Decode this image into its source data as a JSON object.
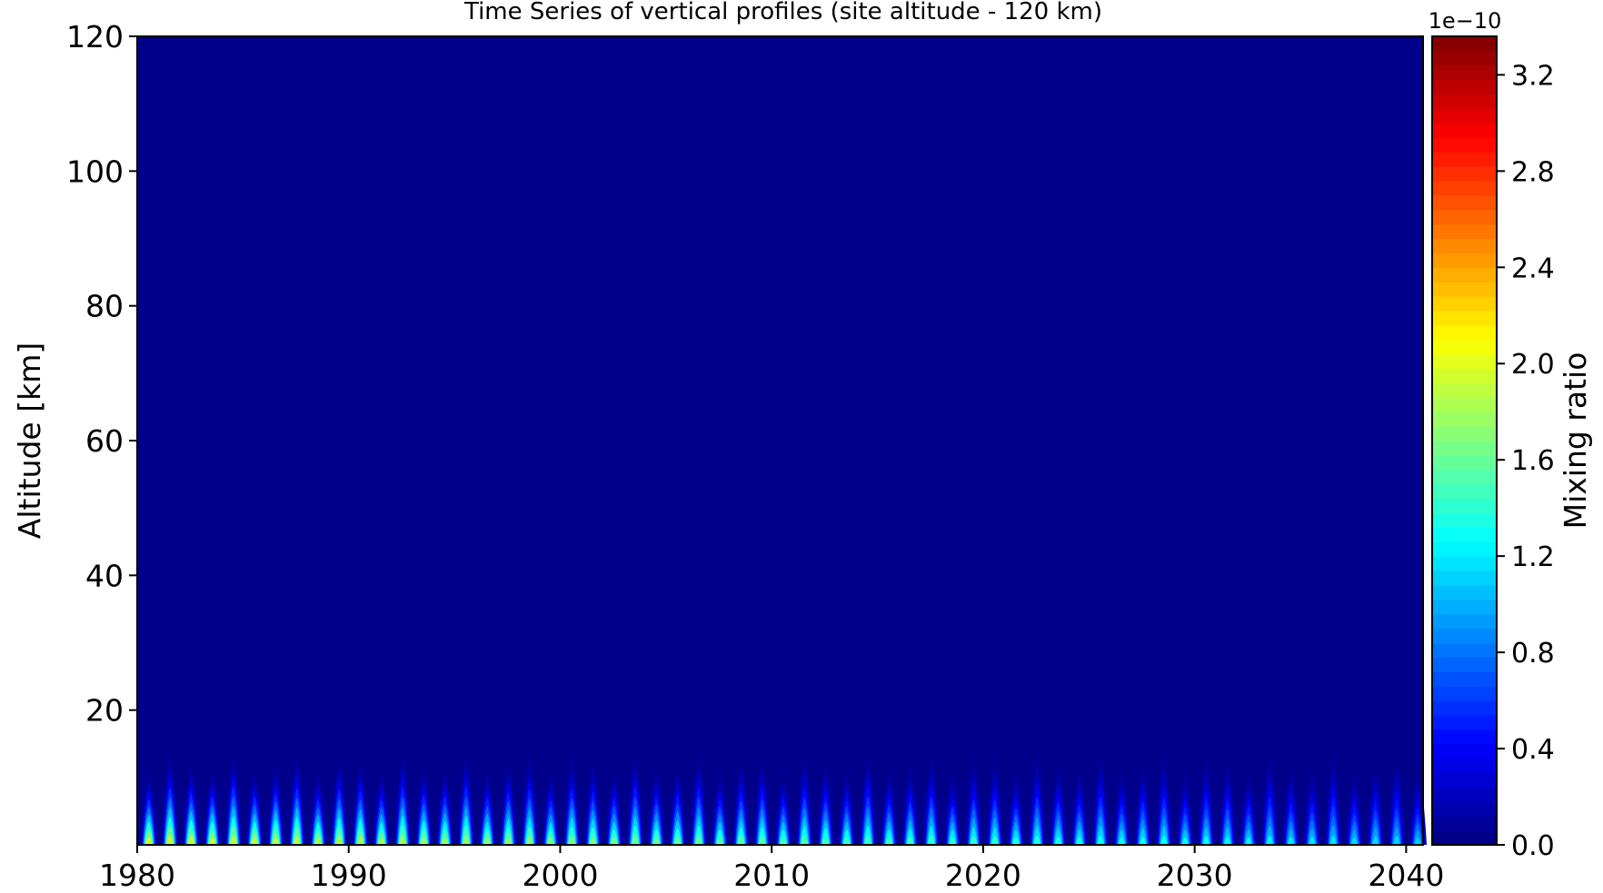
{
  "chart_data": {
    "type": "heatmap",
    "title": "Time Series of vertical profiles (site altitude - 120 km)",
    "xlabel": "",
    "ylabel": "Altitude [km]",
    "xlim": [
      1980,
      2040.8
    ],
    "ylim": [
      0,
      120
    ],
    "x_ticks": [
      "1980",
      "1990",
      "2000",
      "2010",
      "2020",
      "2030",
      "2040"
    ],
    "y_ticks": [
      "20",
      "40",
      "60",
      "80",
      "100",
      "120"
    ],
    "background_value": 0.0,
    "seasonal_cycle": {
      "period_years": 1,
      "plume_top_altitude_km": 13,
      "peak_altitude_km": 1,
      "peak_value_early_years": 2.4e-10,
      "peak_value_late_years": 1.3e-10
    },
    "colorbar": {
      "label": "Mixing ratio",
      "scale_label": "1e−10",
      "ticks": [
        "0.0",
        "0.4",
        "0.8",
        "1.2",
        "1.6",
        "2.0",
        "2.4",
        "2.8",
        "3.2"
      ],
      "range": [
        0.0,
        3.36
      ],
      "colormap": "jet"
    }
  }
}
